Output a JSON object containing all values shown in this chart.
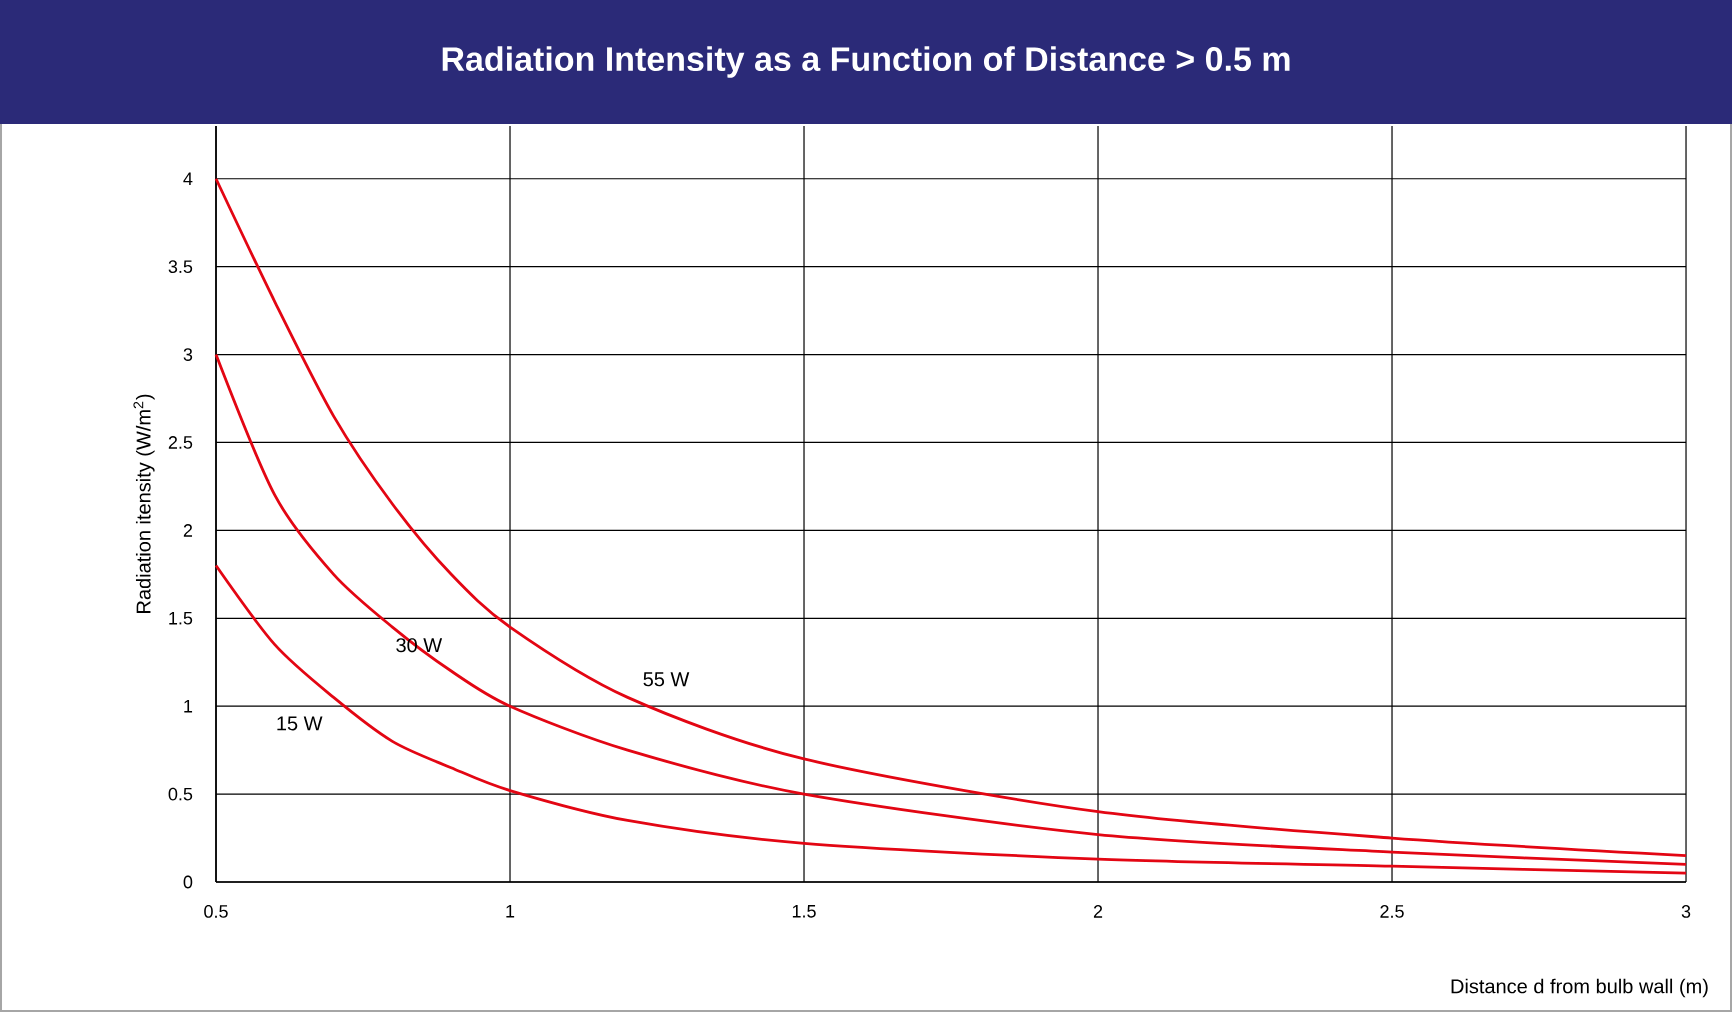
{
  "chart_data": {
    "type": "line",
    "title": "Radiation Intensity as a Function of Distance > 0.5 m",
    "xlabel": "Distance d from bulb wall (m)",
    "ylabel": "Radiation itensity (W/m$^{2}$)",
    "x": [
      0.5,
      0.6,
      0.7,
      0.8,
      0.9,
      1,
      1.2,
      1.5,
      2,
      2.5,
      3
    ],
    "series": [
      {
        "name": "55 W",
        "color": "#e30613",
        "values": [
          4,
          3.3,
          2.65,
          2.15,
          1.75,
          1.45,
          1.05,
          0.7,
          0.4,
          0.25,
          0.15
        ]
      },
      {
        "name": "30 W",
        "color": "#e30613",
        "values": [
          3,
          2.2,
          1.75,
          1.45,
          1.2,
          1.0,
          0.75,
          0.5,
          0.27,
          0.17,
          0.1
        ]
      },
      {
        "name": "15 W",
        "color": "#e30613",
        "values": [
          1.8,
          1.35,
          1.05,
          0.8,
          0.65,
          0.52,
          0.35,
          0.22,
          0.13,
          0.09,
          0.05
        ]
      }
    ],
    "xlim": [
      0.5,
      3
    ],
    "ylim": [
      0,
      4.3
    ],
    "xticks": [
      0.5,
      1,
      1.5,
      2,
      2.5,
      3
    ],
    "yticks": [
      0,
      0.5,
      1,
      1.5,
      2,
      2.5,
      3,
      3.5,
      4
    ],
    "grid": true,
    "marker": "none",
    "line_style": "solid"
  }
}
